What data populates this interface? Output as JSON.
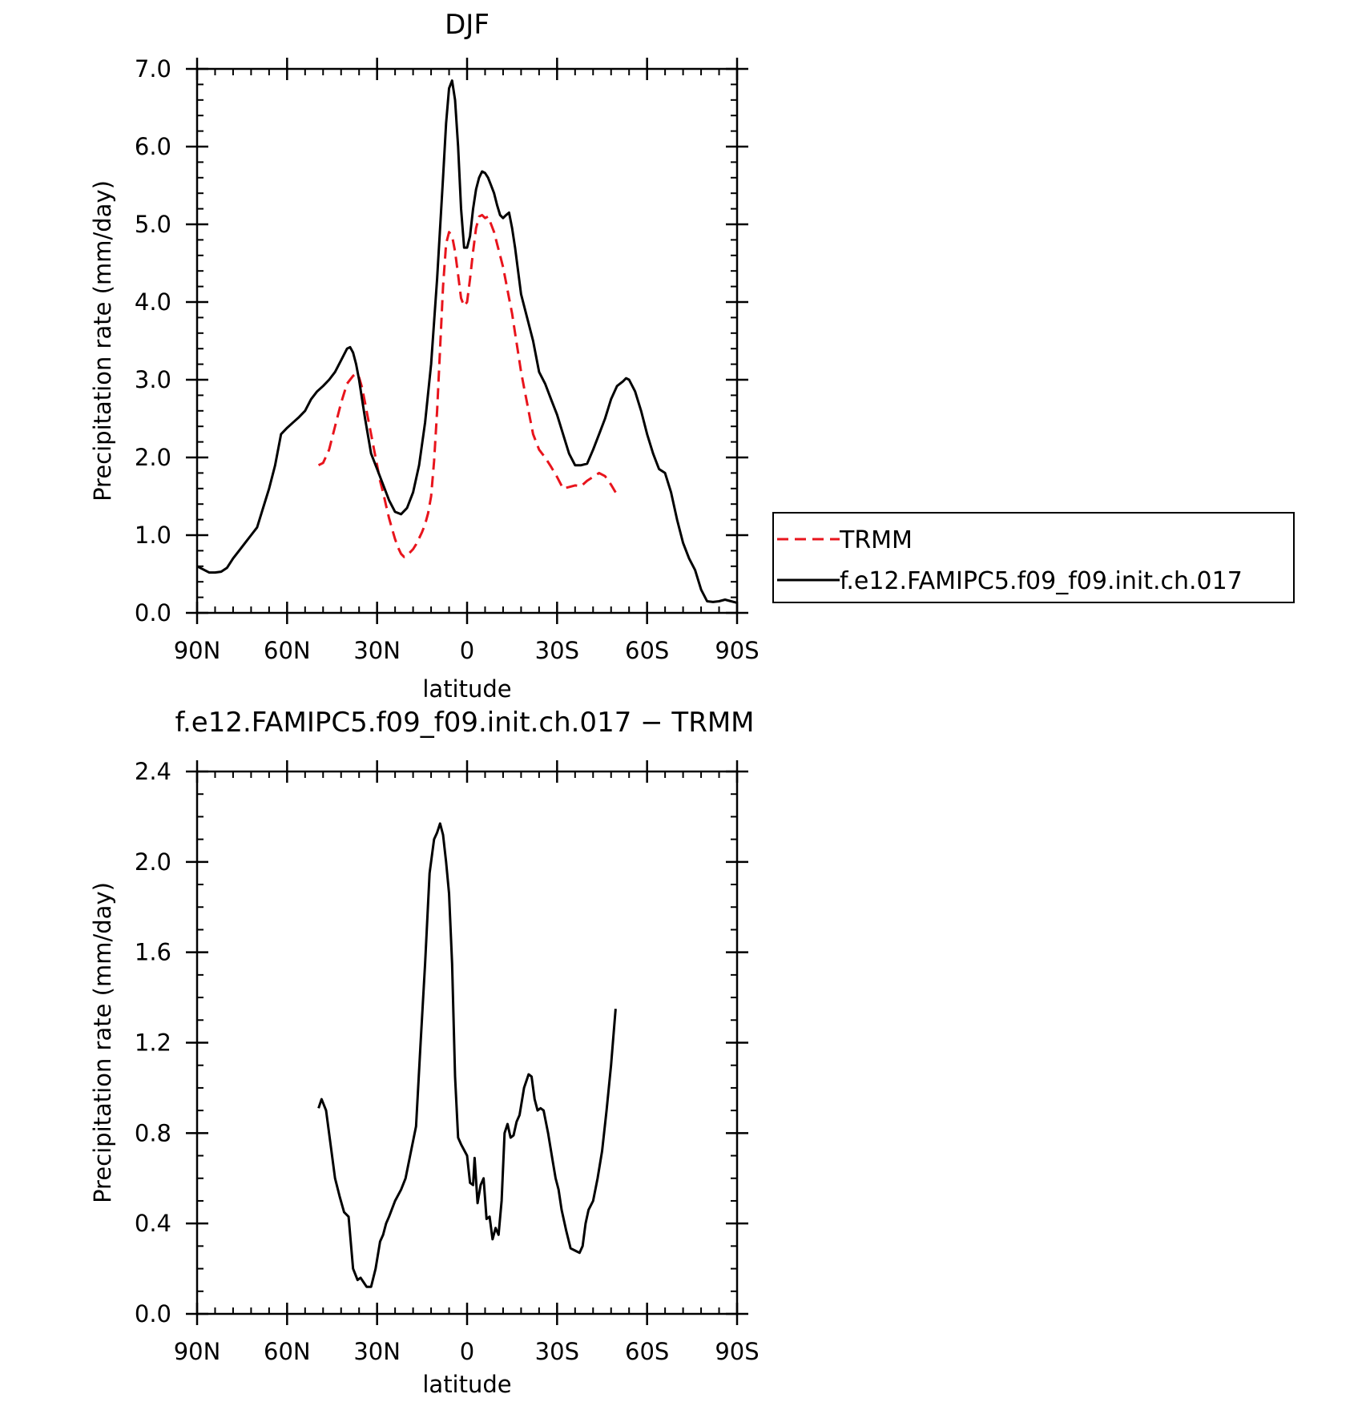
{
  "chart_data": [
    {
      "type": "line",
      "title": "DJF",
      "xlabel": "latitude",
      "ylabel": "Precipitation rate (mm/day)",
      "xlim": [
        -90,
        90
      ],
      "ylim": [
        0,
        7
      ],
      "x_ticks": [
        -90,
        -60,
        -30,
        0,
        30,
        60,
        90
      ],
      "x_tick_labels": [
        "90N",
        "60N",
        "30N",
        "0",
        "30S",
        "60S",
        "90S"
      ],
      "y_ticks": [
        0,
        1,
        2,
        3,
        4,
        5,
        6,
        7
      ],
      "y_tick_labels": [
        "0.0",
        "1.0",
        "2.0",
        "3.0",
        "4.0",
        "5.0",
        "6.0",
        "7.0"
      ],
      "legend_position": "right",
      "series": [
        {
          "name": "TRMM",
          "color": "#e8141c",
          "dash": "dashed",
          "x": [
            -49.5,
            -48,
            -46,
            -44,
            -42,
            -40,
            -38,
            -37,
            -36,
            -35,
            -34,
            -33,
            -32,
            -31,
            -30,
            -29,
            -28,
            -27,
            -26,
            -25,
            -24,
            -23,
            -22,
            -21,
            -20,
            -19,
            -18,
            -17,
            -16,
            -15,
            -14,
            -13,
            -12,
            -11,
            -10,
            -9,
            -8,
            -7,
            -6,
            -5,
            -4,
            -3,
            -2,
            -1,
            0,
            1,
            2,
            3,
            4,
            5,
            6,
            7,
            8,
            9,
            10,
            11,
            12,
            13,
            14,
            15,
            16,
            17,
            18,
            19,
            20,
            21,
            22,
            24,
            26,
            28,
            30,
            32,
            34,
            36,
            38,
            40,
            42,
            44,
            46,
            48,
            49.5
          ],
          "y": [
            1.9,
            1.93,
            2.1,
            2.4,
            2.7,
            2.95,
            3.05,
            3.08,
            3.03,
            2.9,
            2.7,
            2.5,
            2.3,
            2.1,
            1.9,
            1.7,
            1.55,
            1.38,
            1.22,
            1.08,
            0.95,
            0.84,
            0.76,
            0.72,
            0.74,
            0.78,
            0.82,
            0.88,
            0.96,
            1.04,
            1.14,
            1.28,
            1.5,
            1.95,
            2.6,
            3.4,
            4.2,
            4.75,
            4.9,
            4.85,
            4.65,
            4.35,
            4.05,
            3.95,
            4.0,
            4.3,
            4.65,
            4.95,
            5.1,
            5.12,
            5.08,
            5.1,
            5.0,
            4.9,
            4.75,
            4.6,
            4.45,
            4.25,
            4.05,
            3.85,
            3.6,
            3.35,
            3.1,
            2.9,
            2.7,
            2.5,
            2.3,
            2.1,
            2.0,
            1.88,
            1.75,
            1.6,
            1.62,
            1.64,
            1.63,
            1.7,
            1.75,
            1.8,
            1.76,
            1.65,
            1.55
          ]
        },
        {
          "name": "f.e12.FAMIPC5.f09_f09.init.ch.017",
          "color": "#000000",
          "dash": "solid",
          "x": [
            -90,
            -88,
            -86,
            -84,
            -82,
            -80,
            -78,
            -76,
            -74,
            -72,
            -70,
            -68,
            -66,
            -64,
            -62,
            -60,
            -58,
            -56,
            -54,
            -52,
            -50,
            -48,
            -46,
            -44,
            -42,
            -40,
            -39,
            -38,
            -37,
            -36,
            -35,
            -34,
            -32,
            -30,
            -28,
            -26,
            -24,
            -22,
            -20,
            -18,
            -16,
            -14,
            -12,
            -10,
            -8,
            -7,
            -6,
            -5,
            -4,
            -3,
            -2,
            -1,
            0,
            1,
            2,
            3,
            4,
            5,
            6,
            7,
            8,
            9,
            10,
            11,
            12,
            13,
            14,
            15,
            16,
            18,
            20,
            22,
            24,
            26,
            28,
            30,
            32,
            34,
            36,
            38,
            40,
            42,
            44,
            46,
            48,
            50,
            52,
            53,
            54,
            56,
            58,
            60,
            62,
            63,
            64,
            66,
            68,
            70,
            72,
            74,
            76,
            78,
            80,
            82,
            84,
            86,
            88,
            90
          ],
          "y": [
            0.6,
            0.56,
            0.52,
            0.52,
            0.53,
            0.58,
            0.7,
            0.8,
            0.9,
            1.0,
            1.1,
            1.35,
            1.6,
            1.9,
            2.3,
            2.38,
            2.45,
            2.52,
            2.6,
            2.75,
            2.85,
            2.92,
            3.0,
            3.1,
            3.25,
            3.4,
            3.42,
            3.35,
            3.2,
            3.0,
            2.75,
            2.5,
            2.05,
            1.85,
            1.65,
            1.45,
            1.3,
            1.27,
            1.35,
            1.55,
            1.9,
            2.45,
            3.2,
            4.3,
            5.6,
            6.3,
            6.75,
            6.85,
            6.6,
            6.0,
            5.2,
            4.7,
            4.7,
            4.85,
            5.2,
            5.45,
            5.6,
            5.68,
            5.66,
            5.6,
            5.5,
            5.4,
            5.25,
            5.12,
            5.08,
            5.12,
            5.15,
            4.95,
            4.7,
            4.1,
            3.8,
            3.5,
            3.1,
            2.95,
            2.75,
            2.55,
            2.3,
            2.05,
            1.9,
            1.9,
            1.92,
            2.1,
            2.3,
            2.5,
            2.75,
            2.92,
            2.98,
            3.02,
            3.0,
            2.85,
            2.6,
            2.3,
            2.05,
            1.95,
            1.85,
            1.8,
            1.55,
            1.2,
            0.9,
            0.7,
            0.55,
            0.3,
            0.15,
            0.14,
            0.15,
            0.17,
            0.15,
            0.13
          ]
        }
      ]
    },
    {
      "type": "line",
      "title": "f.e12.FAMIPC5.f09_f09.init.ch.017 − TRMM",
      "xlabel": "latitude",
      "ylabel": "Precipitation rate (mm/day)",
      "xlim": [
        -90,
        90
      ],
      "ylim": [
        0,
        2.4
      ],
      "x_ticks": [
        -90,
        -60,
        -30,
        0,
        30,
        60,
        90
      ],
      "x_tick_labels": [
        "90N",
        "60N",
        "30N",
        "0",
        "30S",
        "60S",
        "90S"
      ],
      "y_ticks": [
        0,
        0.4,
        0.8,
        1.2,
        1.6,
        2.0,
        2.4
      ],
      "y_tick_labels": [
        "0.0",
        "0.4",
        "0.8",
        "1.2",
        "1.6",
        "2.0",
        "2.4"
      ],
      "series": [
        {
          "color": "#000000",
          "dash": "solid",
          "x": [
            -49.5,
            -48.5,
            -47,
            -45.5,
            -44,
            -42.5,
            -41,
            -39.5,
            -38,
            -36.5,
            -35.5,
            -34.5,
            -33.5,
            -32,
            -30.5,
            -29,
            -28,
            -27,
            -26,
            -24,
            -22,
            -20.5,
            -19,
            -17,
            -15.5,
            -14,
            -12.5,
            -11,
            -10,
            -9,
            -8,
            -7,
            -6,
            -5,
            -4,
            -3,
            -2,
            0,
            1,
            2,
            2.5,
            3.5,
            4.5,
            5.5,
            6.5,
            7.5,
            8.5,
            9.5,
            10.5,
            11.5,
            12.5,
            13.5,
            14.5,
            15.5,
            16.5,
            17.5,
            19,
            20.5,
            21.5,
            22.5,
            23.5,
            24.5,
            25.5,
            27,
            28.5,
            29.5,
            30.5,
            31.5,
            33,
            34.5,
            36,
            37.5,
            38.5,
            39.5,
            40.5,
            42,
            43.5,
            45,
            46.5,
            48,
            49.5
          ],
          "y": [
            0.91,
            0.95,
            0.9,
            0.75,
            0.6,
            0.52,
            0.45,
            0.43,
            0.2,
            0.15,
            0.16,
            0.14,
            0.12,
            0.12,
            0.2,
            0.32,
            0.35,
            0.4,
            0.43,
            0.5,
            0.55,
            0.6,
            0.7,
            0.83,
            1.2,
            1.55,
            1.95,
            2.1,
            2.13,
            2.17,
            2.12,
            2.0,
            1.86,
            1.55,
            1.05,
            0.78,
            0.75,
            0.7,
            0.58,
            0.57,
            0.69,
            0.49,
            0.57,
            0.6,
            0.42,
            0.43,
            0.33,
            0.38,
            0.35,
            0.5,
            0.8,
            0.84,
            0.78,
            0.79,
            0.85,
            0.88,
            1.0,
            1.06,
            1.05,
            0.95,
            0.9,
            0.91,
            0.9,
            0.8,
            0.68,
            0.6,
            0.55,
            0.46,
            0.37,
            0.29,
            0.28,
            0.27,
            0.3,
            0.4,
            0.46,
            0.5,
            0.6,
            0.72,
            0.9,
            1.1,
            1.35
          ]
        }
      ]
    }
  ]
}
